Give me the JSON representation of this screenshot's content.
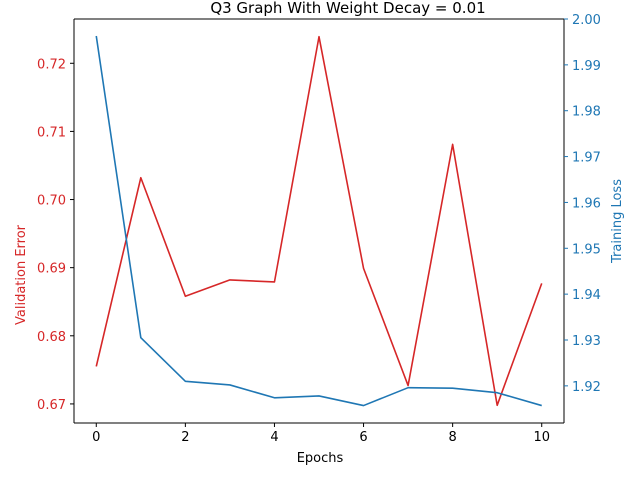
{
  "chart_data": {
    "type": "line",
    "title": "Q3 Graph With Weight Decay = 0.01",
    "xlabel": "Epochs",
    "x": [
      0,
      1,
      2,
      3,
      4,
      5,
      6,
      7,
      8,
      9,
      10
    ],
    "xlim": [
      -0.5,
      10.5
    ],
    "xticks": [
      0,
      2,
      4,
      6,
      8,
      10
    ],
    "xtick_labels": [
      "0",
      "2",
      "4",
      "6",
      "8",
      "10"
    ],
    "grid": false,
    "series": [
      {
        "axis": "left",
        "values": [
          0.6755,
          0.7032,
          0.6858,
          0.6882,
          0.6879,
          0.7239,
          0.6899,
          0.6727,
          0.7081,
          0.6698,
          0.6877
        ],
        "color": "#d62728"
      },
      {
        "axis": "right",
        "values": [
          1.9963,
          1.9305,
          1.921,
          1.9202,
          1.9174,
          1.9178,
          1.9157,
          1.9196,
          1.9195,
          1.9185,
          1.9157
        ],
        "color": "#1f77b4"
      }
    ],
    "left_axis": {
      "label": "Validation Error",
      "color": "#d62728",
      "ylim": [
        0.6672,
        0.7265
      ],
      "ticks": [
        0.67,
        0.68,
        0.69,
        0.7,
        0.71,
        0.72
      ],
      "tick_labels": [
        "0.67",
        "0.68",
        "0.69",
        "0.70",
        "0.71",
        "0.72"
      ]
    },
    "right_axis": {
      "label": "Training Loss",
      "color": "#1f77b4",
      "ylim": [
        1.9119,
        2.0
      ],
      "ticks": [
        1.92,
        1.93,
        1.94,
        1.95,
        1.96,
        1.97,
        1.98,
        1.99,
        2.0
      ],
      "tick_labels": [
        "1.92",
        "1.93",
        "1.94",
        "1.95",
        "1.96",
        "1.97",
        "1.98",
        "1.99",
        "2.00"
      ]
    }
  }
}
